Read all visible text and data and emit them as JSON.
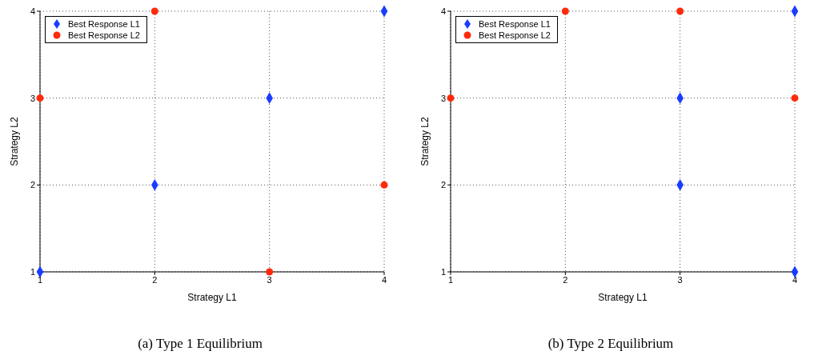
{
  "chart_data": [
    {
      "type": "scatter",
      "xlabel": "Strategy L1",
      "ylabel": "Strategy L2",
      "annotations": [
        "(a) Type 1 Equilibrium"
      ],
      "xlim": [
        1,
        4
      ],
      "ylim": [
        1,
        4
      ],
      "xticks": [
        1,
        2,
        3,
        4
      ],
      "yticks": [
        1,
        2,
        3,
        4
      ],
      "grid": true,
      "legend": "top left",
      "series": [
        {
          "name": "Best Response L1",
          "color": "#1a3cff",
          "marker": "diamond",
          "x": [
            1,
            2,
            3,
            4
          ],
          "values": [
            1,
            2,
            3,
            4
          ]
        },
        {
          "name": "Best Response L2",
          "color": "#ff2a0a",
          "marker": "circle",
          "x": [
            1,
            2,
            3,
            4
          ],
          "values": [
            3,
            4,
            1,
            2
          ]
        }
      ]
    },
    {
      "type": "scatter",
      "xlabel": "Strategy L1",
      "ylabel": "Strategy L2",
      "annotations": [
        "(b) Type 2 Equilibrium"
      ],
      "xlim": [
        1,
        4
      ],
      "ylim": [
        1,
        4
      ],
      "xticks": [
        1,
        2,
        3,
        4
      ],
      "yticks": [
        1,
        2,
        3,
        4
      ],
      "grid": true,
      "legend": "top left",
      "series": [
        {
          "name": "Best Response L1",
          "color": "#1a3cff",
          "marker": "diamond",
          "x": [
            3,
            3,
            4,
            4
          ],
          "values": [
            3,
            2,
            4,
            1
          ]
        },
        {
          "name": "Best Response L2",
          "color": "#ff2a0a",
          "marker": "circle",
          "x": [
            1,
            2,
            3,
            4
          ],
          "values": [
            3,
            4,
            4,
            3
          ]
        }
      ]
    }
  ]
}
